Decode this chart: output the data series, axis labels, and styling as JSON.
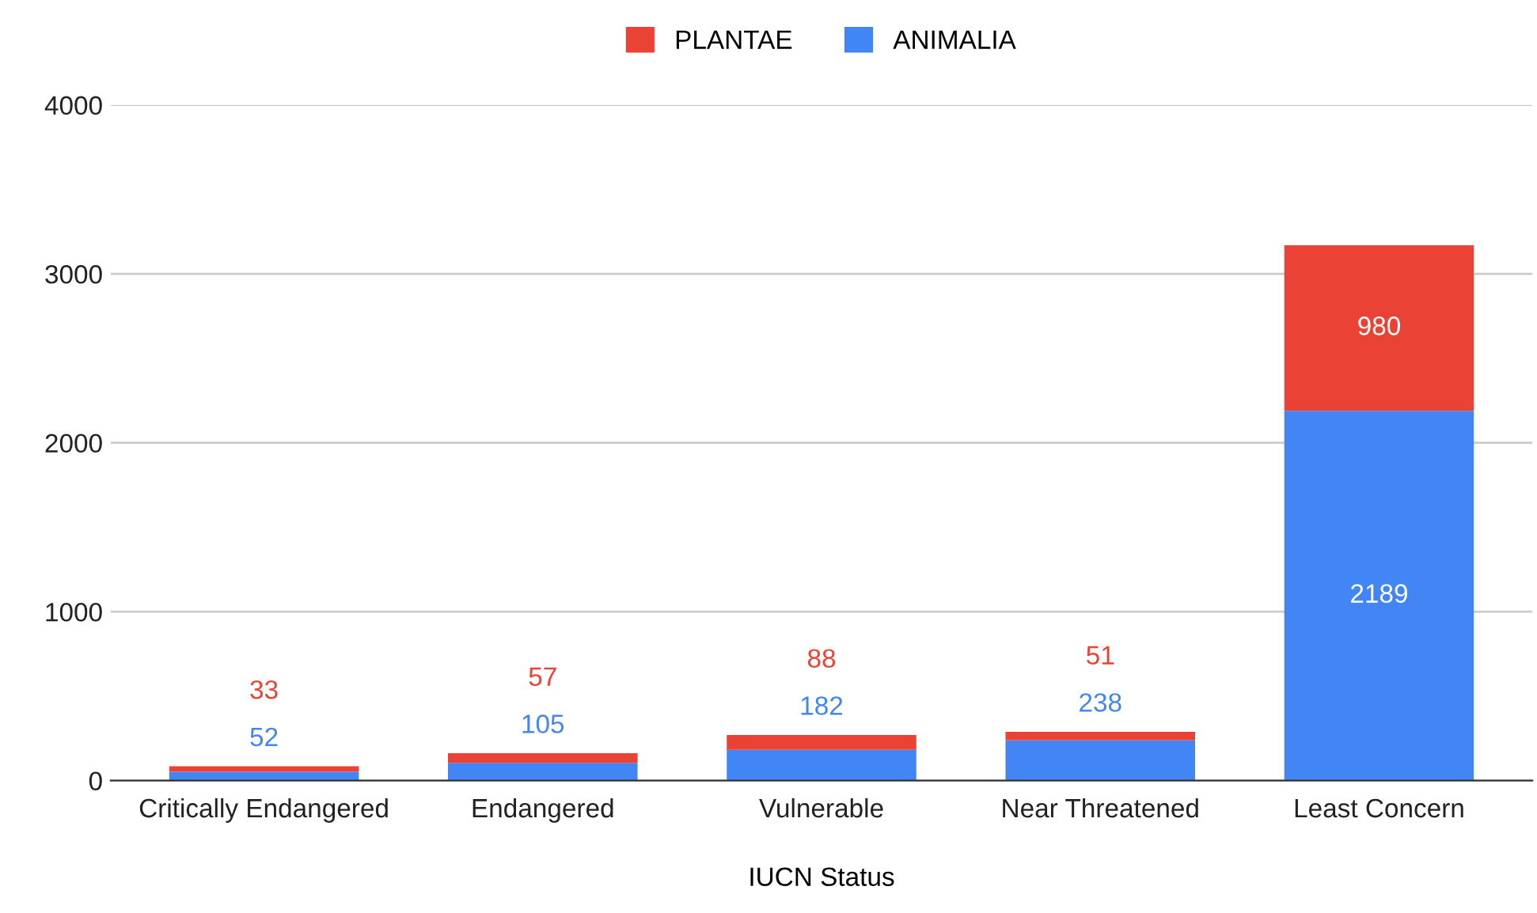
{
  "chart_data": {
    "type": "bar",
    "stacked": true,
    "xlabel": "IUCN Status",
    "categories": [
      "Critically Endangered",
      "Endangered",
      "Vulnerable",
      "Near Threatened",
      "Least Concern"
    ],
    "series": [
      {
        "name": "ANIMALIA",
        "color": "#4285f4",
        "values": [
          52,
          105,
          182,
          238,
          2189
        ]
      },
      {
        "name": "PLANTAE",
        "color": "#ea4335",
        "values": [
          33,
          57,
          88,
          51,
          980
        ]
      }
    ],
    "ylim": [
      0,
      4000
    ],
    "yticks": [
      0,
      1000,
      2000,
      3000,
      4000
    ],
    "grid": "y",
    "legend": "top",
    "data_labels": true
  }
}
